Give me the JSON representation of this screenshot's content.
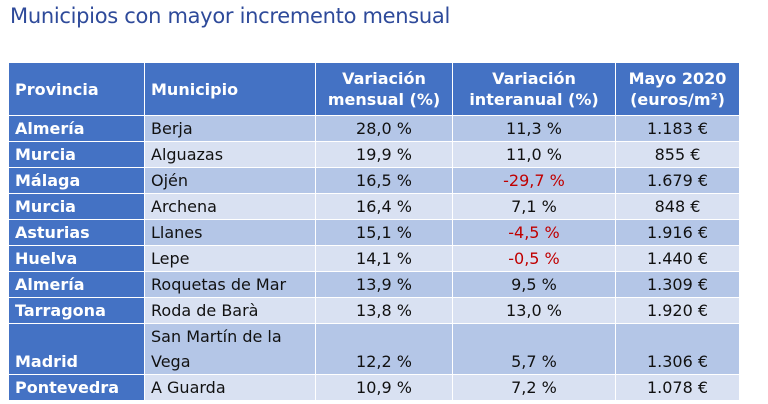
{
  "title": "Municipios con mayor incremento mensual",
  "headers": {
    "provincia": "Provincia",
    "municipio": "Municipio",
    "var_mensual_1": "Variación",
    "var_mensual_2": "mensual (%)",
    "var_interanual_1": "Variación",
    "var_interanual_2": "interanual (%)",
    "mayo_1": "Mayo 2020",
    "mayo_2": "(euros/m²)"
  },
  "rows": [
    {
      "provincia": "Almería",
      "municipio": "Berja",
      "mensual": "28,0 %",
      "interanual": "11,3 %",
      "mayo": "1.183 €"
    },
    {
      "provincia": "Murcia",
      "municipio": "Alguazas",
      "mensual": "19,9 %",
      "interanual": "11,0 %",
      "mayo": "855 €"
    },
    {
      "provincia": "Málaga",
      "municipio": "Ojén",
      "mensual": "16,5 %",
      "interanual": "-29,7 %",
      "mayo": "1.679 €"
    },
    {
      "provincia": "Murcia",
      "municipio": "Archena",
      "mensual": "16,4 %",
      "interanual": "7,1 %",
      "mayo": "848 €"
    },
    {
      "provincia": "Asturias",
      "municipio": "Llanes",
      "mensual": "15,1 %",
      "interanual": "-4,5 %",
      "mayo": "1.916 €"
    },
    {
      "provincia": "Huelva",
      "municipio": "Lepe",
      "mensual": "14,1 %",
      "interanual": "-0,5 %",
      "mayo": "1.440 €"
    },
    {
      "provincia": "Almería",
      "municipio": "Roquetas de Mar",
      "mensual": "13,9 %",
      "interanual": "9,5 %",
      "mayo": "1.309 €"
    },
    {
      "provincia": "Tarragona",
      "municipio": "Roda de Barà",
      "mensual": "13,8 %",
      "interanual": "13,0 %",
      "mayo": "1.920 €"
    },
    {
      "provincia": "Madrid",
      "municipio": "San Martín de la Vega",
      "mensual": "12,2 %",
      "interanual": "5,7 %",
      "mayo": "1.306 €"
    },
    {
      "provincia": "Pontevedra",
      "municipio": "A Guarda",
      "mensual": "10,9 %",
      "interanual": "7,2 %",
      "mayo": "1.078 €"
    }
  ],
  "colors": {
    "header_bg": "#4472c4",
    "row_odd": "#b4c6e7",
    "row_even": "#d9e1f2",
    "negative": "#c00000",
    "title": "#2e4a9a"
  }
}
